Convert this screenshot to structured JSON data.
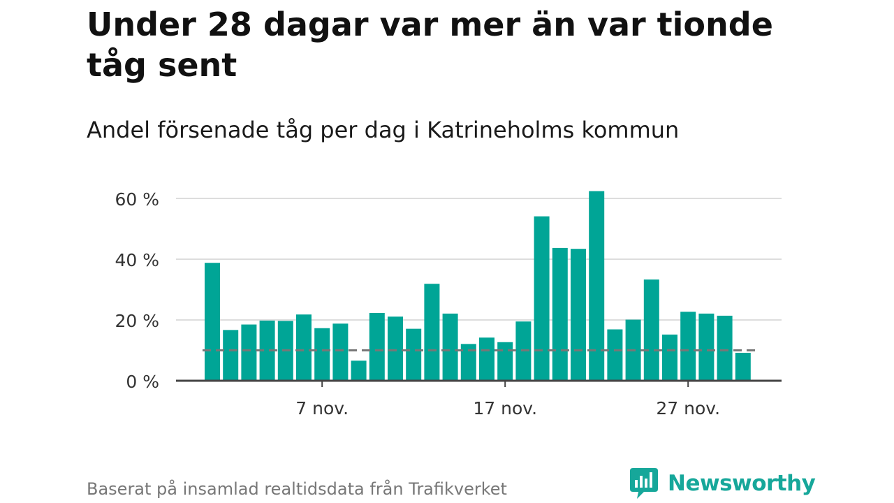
{
  "title": "Under 28 dagar var mer än var tionde tåg sent",
  "subtitle": "Andel försenade tåg per dag i Katrineholms kommun",
  "footer": "Baserat på insamlad realtidsdata från Trafikverket",
  "brand": {
    "name": "Newsworthy",
    "icon": "newsworthy-logo-icon",
    "color": "#16a79a"
  },
  "colors": {
    "bar": "#00a596",
    "grid": "#dddddd",
    "axis": "#444444",
    "reference": "#777777"
  },
  "chart_data": {
    "type": "bar",
    "x_unit": "date",
    "categories": [
      "2023-11-01",
      "2023-11-02",
      "2023-11-03",
      "2023-11-04",
      "2023-11-05",
      "2023-11-06",
      "2023-11-07",
      "2023-11-08",
      "2023-11-09",
      "2023-11-10",
      "2023-11-11",
      "2023-11-12",
      "2023-11-13",
      "2023-11-14",
      "2023-11-15",
      "2023-11-16",
      "2023-11-17",
      "2023-11-18",
      "2023-11-19",
      "2023-11-20",
      "2023-11-21",
      "2023-11-22",
      "2023-11-23",
      "2023-11-24",
      "2023-11-25",
      "2023-11-26",
      "2023-11-27",
      "2023-11-28",
      "2023-11-29",
      "2023-11-30"
    ],
    "values": [
      38.8,
      16.7,
      18.5,
      19.8,
      19.7,
      21.8,
      17.3,
      18.8,
      6.6,
      22.3,
      21.1,
      17.1,
      31.9,
      22.1,
      12.1,
      14.2,
      12.7,
      19.5,
      54.1,
      43.7,
      43.4,
      62.4,
      16.9,
      20.1,
      33.3,
      15.2,
      22.7,
      22.1,
      21.4,
      9.2
    ],
    "reference_line": 10,
    "ylim": [
      0,
      60
    ],
    "yticks": [
      0,
      20,
      40,
      60
    ],
    "ytick_labels": [
      "0 %",
      "20 %",
      "40 %",
      "60 %"
    ],
    "xticks": [
      {
        "date": "2023-11-07",
        "label": "7 nov."
      },
      {
        "date": "2023-11-17",
        "label": "17 nov."
      },
      {
        "date": "2023-11-27",
        "label": "27 nov."
      }
    ],
    "grid": true,
    "legend": false
  }
}
